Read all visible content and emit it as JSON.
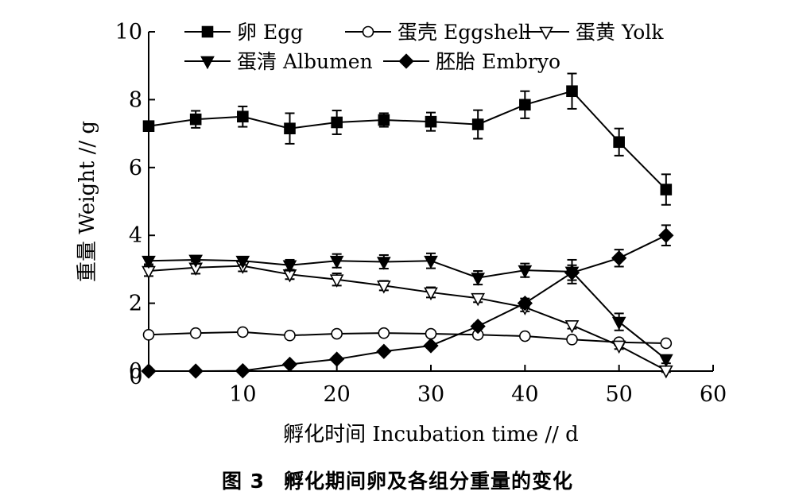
{
  "chart_data": {
    "type": "line",
    "title": "",
    "xlabel": "孵化时间 Incubation time // d",
    "ylabel": "重量 Weight // g",
    "xlim": [
      0,
      60
    ],
    "ylim": [
      0,
      10
    ],
    "xticks": [
      10,
      20,
      30,
      40,
      50,
      60
    ],
    "xtick_labels": [
      "10",
      "20",
      "30",
      "40",
      "50",
      "60"
    ],
    "yticks": [
      0,
      2,
      4,
      6,
      8,
      10
    ],
    "ytick_labels": [
      "0",
      "2",
      "4",
      "6",
      "8",
      "10"
    ],
    "grid": false,
    "legend_position": "top",
    "series": [
      {
        "name": "卵 Egg",
        "marker": "filled-square",
        "x": [
          0,
          5,
          10,
          15,
          20,
          25,
          30,
          35,
          40,
          45,
          50,
          55
        ],
        "y": [
          7.22,
          7.42,
          7.5,
          7.15,
          7.33,
          7.4,
          7.35,
          7.27,
          7.85,
          8.25,
          6.75,
          5.35
        ],
        "err": [
          0.1,
          0.25,
          0.3,
          0.45,
          0.35,
          0.2,
          0.27,
          0.42,
          0.4,
          0.52,
          0.4,
          0.45
        ]
      },
      {
        "name": "蛋壳 Eggshell",
        "marker": "open-circle",
        "x": [
          0,
          5,
          10,
          15,
          20,
          25,
          30,
          35,
          40,
          45,
          50,
          55
        ],
        "y": [
          1.07,
          1.12,
          1.15,
          1.05,
          1.1,
          1.12,
          1.1,
          1.07,
          1.03,
          0.93,
          0.85,
          0.82
        ],
        "err": [
          0.04,
          0.04,
          0.04,
          0.04,
          0.04,
          0.04,
          0.04,
          0.04,
          0.04,
          0.04,
          0.04,
          0.04
        ]
      },
      {
        "name": "蛋黄 Yolk",
        "marker": "open-triangle-down",
        "x": [
          0,
          5,
          10,
          15,
          20,
          25,
          30,
          35,
          40,
          45,
          50,
          55
        ],
        "y": [
          2.95,
          3.05,
          3.1,
          2.85,
          2.7,
          2.52,
          2.32,
          2.15,
          1.88,
          1.35,
          0.75,
          0.02
        ],
        "err": [
          0.15,
          0.18,
          0.16,
          0.14,
          0.18,
          0.14,
          0.15,
          0.12,
          0.12,
          0.1,
          0.1,
          0.05
        ]
      },
      {
        "name": "蛋清 Albumen",
        "marker": "filled-triangle-down",
        "x": [
          0,
          5,
          10,
          15,
          20,
          25,
          30,
          35,
          40,
          45,
          50,
          55
        ],
        "y": [
          3.25,
          3.28,
          3.25,
          3.12,
          3.25,
          3.22,
          3.25,
          2.75,
          2.97,
          2.93,
          1.45,
          0.35
        ],
        "err": [
          0.1,
          0.12,
          0.12,
          0.16,
          0.2,
          0.2,
          0.22,
          0.2,
          0.2,
          0.35,
          0.25,
          0.12
        ]
      },
      {
        "name": "胚胎 Embryo",
        "marker": "filled-diamond",
        "x": [
          0,
          5,
          10,
          15,
          20,
          25,
          30,
          35,
          40,
          45,
          50,
          55
        ],
        "y": [
          0,
          0,
          0.01,
          0.2,
          0.35,
          0.58,
          0.75,
          1.32,
          2.0,
          2.9,
          3.33,
          4.0
        ],
        "err": [
          0,
          0,
          0,
          0.02,
          0.03,
          0.04,
          0.06,
          0.08,
          0.14,
          0.22,
          0.25,
          0.3
        ]
      }
    ]
  },
  "figure": {
    "caption_number": "图 3",
    "caption_text": "孵化期间卵及各组分重量的变化"
  }
}
